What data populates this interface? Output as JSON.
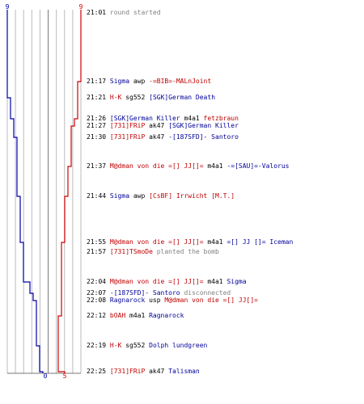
{
  "scores": {
    "blue_start": "9",
    "red_start": "9",
    "blue_end": "0",
    "red_end": "5"
  },
  "colors": {
    "red": "#d00000",
    "blue": "#0000aa",
    "grid": "#bbbbbb",
    "grid_dark": "#777777"
  },
  "events": [
    {
      "time": "21:01",
      "parts": [
        {
          "t": "round started",
          "c": "gray"
        }
      ]
    },
    {
      "time": "21:17",
      "parts": [
        {
          "t": "Sigma",
          "c": "blue"
        },
        {
          "t": "awp",
          "c": "black"
        },
        {
          "t": "-=BIB=-MALnJoint",
          "c": "red"
        }
      ]
    },
    {
      "time": "21:21",
      "parts": [
        {
          "t": "H-K",
          "c": "red"
        },
        {
          "t": "sg552",
          "c": "black"
        },
        {
          "t": "[SGK]German Death",
          "c": "blue"
        }
      ]
    },
    {
      "time": "21:26",
      "parts": [
        {
          "t": "[SGK]German Killer",
          "c": "blue"
        },
        {
          "t": "m4a1",
          "c": "black"
        },
        {
          "t": "fetzbraun",
          "c": "red"
        }
      ]
    },
    {
      "time": "21:27",
      "parts": [
        {
          "t": "[731]FRiP",
          "c": "red"
        },
        {
          "t": "ak47",
          "c": "black"
        },
        {
          "t": "[SGK]German Killer",
          "c": "blue"
        }
      ]
    },
    {
      "time": "21:30",
      "parts": [
        {
          "t": "[731]FRiP",
          "c": "red"
        },
        {
          "t": "ak47",
          "c": "black"
        },
        {
          "t": "-[187SFD]- Santoro",
          "c": "blue"
        }
      ]
    },
    {
      "time": "21:37",
      "parts": [
        {
          "t": "M@dman von die =[] JJ[]=",
          "c": "red"
        },
        {
          "t": "m4a1",
          "c": "black"
        },
        {
          "t": "-=[SAU]=-Valorus",
          "c": "blue"
        }
      ]
    },
    {
      "time": "21:44",
      "parts": [
        {
          "t": "Sigma",
          "c": "blue"
        },
        {
          "t": "awp",
          "c": "black"
        },
        {
          "t": "[CsBF] Irrwicht [M.T.]",
          "c": "red"
        }
      ]
    },
    {
      "time": "21:55",
      "parts": [
        {
          "t": "M@dman von die =[] JJ[]=",
          "c": "red"
        },
        {
          "t": "m4a1",
          "c": "black"
        },
        {
          "t": "=[] JJ []= Iceman",
          "c": "blue"
        }
      ]
    },
    {
      "time": "21:57",
      "parts": [
        {
          "t": "[731]TSmoDe",
          "c": "red"
        },
        {
          "t": "planted the bomb",
          "c": "gray"
        }
      ]
    },
    {
      "time": "22:04",
      "parts": [
        {
          "t": "M@dman von die =[] JJ[]=",
          "c": "red"
        },
        {
          "t": "m4a1",
          "c": "black"
        },
        {
          "t": "Sigma",
          "c": "blue"
        }
      ]
    },
    {
      "time": "22:07",
      "parts": [
        {
          "t": "-[187SFD]- Santoro",
          "c": "blue"
        },
        {
          "t": "disconnected",
          "c": "gray"
        }
      ]
    },
    {
      "time": "22:08",
      "parts": [
        {
          "t": "Ragnarock",
          "c": "blue"
        },
        {
          "t": "usp",
          "c": "black"
        },
        {
          "t": "M@dman von die =[] JJ[]=",
          "c": "red"
        }
      ]
    },
    {
      "time": "22:12",
      "parts": [
        {
          "t": "bOAH",
          "c": "red"
        },
        {
          "t": "m4a1",
          "c": "black"
        },
        {
          "t": "Ragnarock",
          "c": "blue"
        }
      ]
    },
    {
      "time": "22:19",
      "parts": [
        {
          "t": "H-K",
          "c": "red"
        },
        {
          "t": "sg552",
          "c": "black"
        },
        {
          "t": "Dolph lundgreen",
          "c": "blue"
        }
      ]
    },
    {
      "time": "22:25",
      "parts": [
        {
          "t": "[731]FRiP",
          "c": "red"
        },
        {
          "t": "ak47",
          "c": "black"
        },
        {
          "t": "Talisman",
          "c": "blue"
        }
      ]
    }
  ]
}
